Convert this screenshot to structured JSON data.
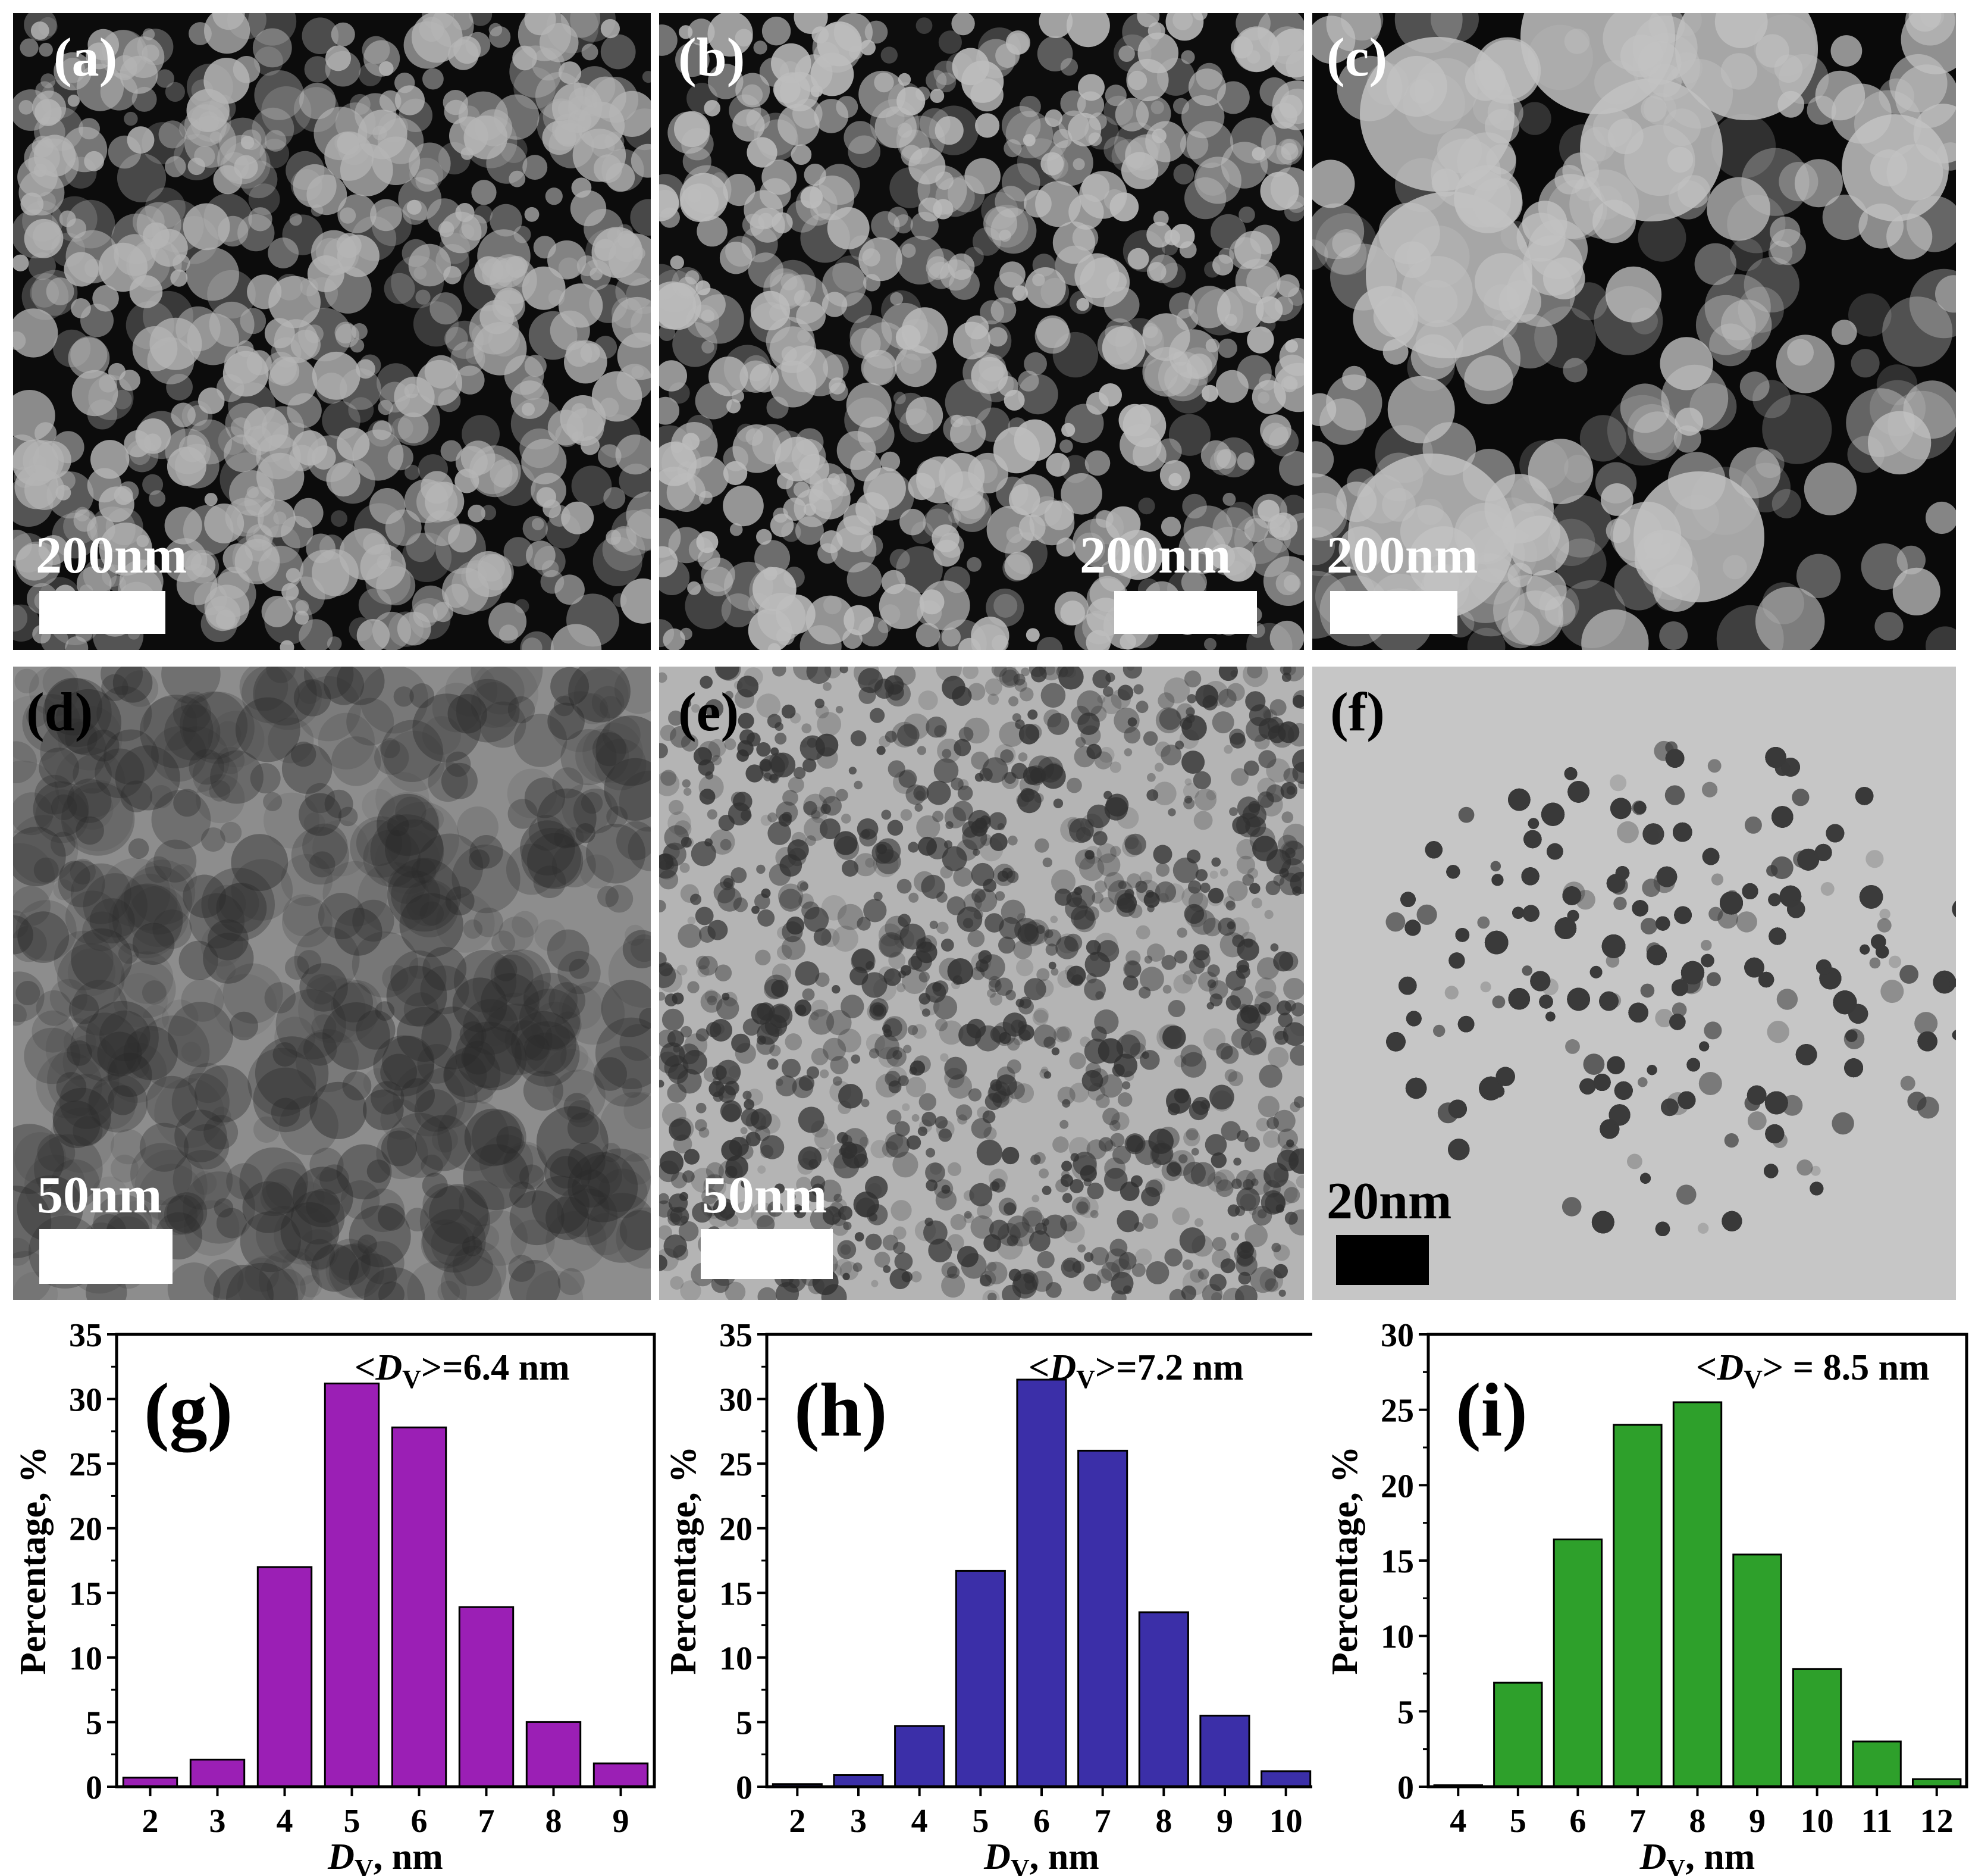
{
  "micrographs": [
    {
      "label": "(a)",
      "scale_text": "200nm",
      "background": "#0c0c0c",
      "particle": "#b5b5b5"
    },
    {
      "label": "(b)",
      "scale_text": "200nm",
      "background": "#0d0d0d",
      "particle": "#bdbdbd"
    },
    {
      "label": "(c)",
      "scale_text": "200nm",
      "background": "#0a0a0a",
      "particle": "#c2c2c2"
    },
    {
      "label": "(d)",
      "scale_text": "50nm",
      "background": "#8d8d8d",
      "particle": "#2a2a2a"
    },
    {
      "label": "(e)",
      "scale_text": "50nm",
      "background": "#b4b4b4",
      "particle": "#303030"
    },
    {
      "label": "(f)",
      "scale_text": "20nm",
      "background": "#c6c6c6",
      "particle": "#3a3a3a"
    }
  ],
  "chart_data": [
    {
      "type": "bar",
      "panel_label": "(g)",
      "annotation": {
        "prefix": "<",
        "var": "D",
        "sub": "V",
        "suffix": ">=6.4 nm"
      },
      "categories": [
        "2",
        "3",
        "4",
        "5",
        "6",
        "7",
        "8",
        "9"
      ],
      "values": [
        0.7,
        2.1,
        17.0,
        31.2,
        27.8,
        13.9,
        5.0,
        1.8
      ],
      "ylim": [
        0,
        35
      ],
      "yticks": [
        "0",
        "5",
        "10",
        "15",
        "20",
        "25",
        "30",
        "35"
      ],
      "ylabel": "Percentage, %",
      "xlabel": {
        "var": "D",
        "sub": "V",
        "suffix": ", nm"
      },
      "color": "#9b1fb5"
    },
    {
      "type": "bar",
      "panel_label": "(h)",
      "annotation": {
        "prefix": "<",
        "var": "D",
        "sub": "V",
        "suffix": ">=7.2 nm"
      },
      "categories": [
        "2",
        "3",
        "4",
        "5",
        "6",
        "7",
        "8",
        "9",
        "10"
      ],
      "values": [
        0.2,
        0.9,
        4.7,
        16.7,
        31.5,
        26.0,
        13.5,
        5.5,
        1.2
      ],
      "ylim": [
        0,
        35
      ],
      "yticks": [
        "0",
        "5",
        "10",
        "15",
        "20",
        "25",
        "30",
        "35"
      ],
      "ylabel": "Percentage, %",
      "xlabel": {
        "var": "D",
        "sub": "V",
        "suffix": ", nm"
      },
      "color": "#3b2fa8"
    },
    {
      "type": "bar",
      "panel_label": "(i)",
      "annotation": {
        "prefix": "<",
        "var": "D",
        "sub": "V",
        "suffix": "> = 8.5 nm"
      },
      "categories": [
        "4",
        "5",
        "6",
        "7",
        "8",
        "9",
        "10",
        "11",
        "12"
      ],
      "values": [
        0.1,
        6.9,
        16.4,
        24.0,
        25.5,
        15.4,
        7.8,
        3.0,
        0.5
      ],
      "ylim": [
        0,
        30
      ],
      "yticks": [
        "0",
        "5",
        "10",
        "15",
        "20",
        "25",
        "30"
      ],
      "ylabel": "Percentage, %",
      "xlabel": {
        "var": "D",
        "sub": "V",
        "suffix": ", nm"
      },
      "color": "#2ea02b"
    }
  ]
}
